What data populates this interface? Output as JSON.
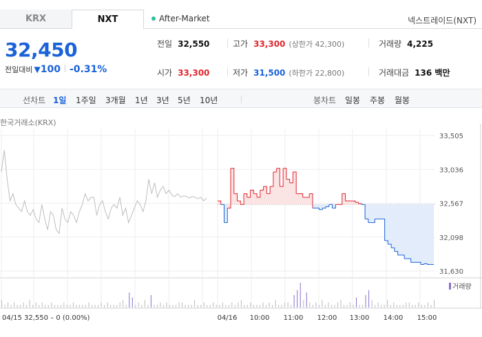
{
  "tabs": [
    {
      "label": "KRX"
    },
    {
      "label": "NXT"
    }
  ],
  "session": {
    "label": "After-Market"
  },
  "venue_link": "넥스트레이드(NXT)",
  "price": {
    "current": "32,450",
    "change_label": "전일대비",
    "change_symbol": "▼",
    "change_value": "100",
    "change_pct": "-0.31%"
  },
  "stats": {
    "prev_close": {
      "label": "전일",
      "value": "32,550"
    },
    "high": {
      "label": "고가",
      "value": "33,300",
      "sub": "(상한가 42,300)"
    },
    "volume": {
      "label": "거래량",
      "value": "4,225"
    },
    "open": {
      "label": "시가",
      "value": "33,300"
    },
    "low": {
      "label": "저가",
      "value": "31,500",
      "sub": "(하한가 22,800)"
    },
    "trade_value": {
      "label": "거래대금",
      "value": "136 백만"
    }
  },
  "period_bar": {
    "line_title": "선차트",
    "periods": [
      "1일",
      "1주일",
      "3개월",
      "1년",
      "3년",
      "5년",
      "10년"
    ],
    "active_period": "1일",
    "candle_title": "봉차트",
    "candles": [
      "일봉",
      "주봉",
      "월봉"
    ]
  },
  "chart_label": "한국거래소(KRX)",
  "colors": {
    "up": "#e0262e",
    "down": "#1a62d8",
    "prev": "#888888",
    "volume": "#8a6fc9"
  },
  "chart_data": {
    "type": "line",
    "ylim": [
      31630,
      33505
    ],
    "y_ticks": [
      "33,505",
      "33,036",
      "32,567",
      "32,098",
      "31,630"
    ],
    "reference": 32550,
    "x_labels": [
      "04/16",
      "10:00",
      "11:00",
      "12:00",
      "13:00",
      "14:00",
      "15:00"
    ],
    "volume_legend": "거래량",
    "prev_day_footer": "04/15  32,550 – 0 (0.00%)",
    "prev_day_series": {
      "name": "04/15",
      "values": [
        33000,
        33300,
        32900,
        32600,
        32700,
        32550,
        32500,
        32450,
        32600,
        32450,
        32400,
        32480,
        32350,
        32300,
        32550,
        32350,
        32200,
        32450,
        32400,
        32200,
        32150,
        32500,
        32350,
        32300,
        32450,
        32400,
        32300,
        32450,
        32550,
        32700,
        32600,
        32650,
        32650,
        32400,
        32550,
        32600,
        32450,
        32350,
        32500,
        32550,
        32500,
        32650,
        32400,
        32500,
        32300,
        32400,
        32500,
        32600,
        32550,
        32450,
        32600,
        32900,
        32700,
        32850,
        32650,
        32750,
        32800,
        32700,
        32750,
        32680,
        32660,
        32700,
        32650,
        32670,
        32660,
        32640,
        32660,
        32650,
        32630,
        32650,
        32600,
        32640
      ]
    },
    "today_series": {
      "name": "04/16",
      "values": [
        32600,
        32550,
        32300,
        32500,
        33050,
        32700,
        32600,
        32550,
        32700,
        32650,
        32750,
        32700,
        32650,
        32750,
        32800,
        32700,
        32800,
        33000,
        33050,
        32800,
        33050,
        32900,
        32850,
        33000,
        32700,
        32700,
        32650,
        32650,
        32700,
        32500,
        32500,
        32480,
        32500,
        32520,
        32550,
        32500,
        32550,
        32550,
        32700,
        32600,
        32600,
        32600,
        32580,
        32560,
        32550,
        32350,
        32300,
        32300,
        32350,
        32350,
        32350,
        32050,
        32000,
        31950,
        31900,
        31850,
        31850,
        31800,
        31800,
        31750,
        31750,
        31750,
        31720,
        31730,
        31720,
        31720,
        31720
      ]
    },
    "volume": [
      3,
      1,
      2,
      1,
      2,
      1,
      1,
      2,
      1,
      3,
      1,
      2,
      1,
      2,
      1,
      1,
      2,
      1,
      1,
      1,
      2,
      1,
      1,
      2,
      1,
      1,
      1,
      1,
      2,
      1,
      1,
      1,
      2,
      1,
      2,
      1,
      1,
      1,
      2,
      3,
      1,
      6,
      4,
      1,
      2,
      1,
      3,
      1,
      5,
      1,
      1,
      2,
      1,
      2,
      1,
      1,
      1,
      2,
      2,
      1,
      1,
      1,
      3,
      1,
      1,
      2,
      1,
      1,
      2,
      1,
      1,
      2,
      1,
      1,
      2,
      1,
      2,
      3,
      1,
      1,
      2,
      1,
      1,
      1,
      2,
      1,
      2,
      1,
      3,
      1,
      1,
      2,
      2,
      1,
      5,
      7,
      10,
      3,
      6,
      2,
      1,
      2,
      1,
      3,
      1,
      2,
      1,
      1,
      2,
      3,
      1,
      1,
      2,
      1,
      4,
      1,
      1,
      5,
      7,
      3,
      1,
      2,
      1,
      1,
      3,
      1,
      2,
      1,
      1,
      1,
      2,
      2,
      1,
      1,
      2,
      1,
      1,
      2,
      1,
      3
    ]
  }
}
